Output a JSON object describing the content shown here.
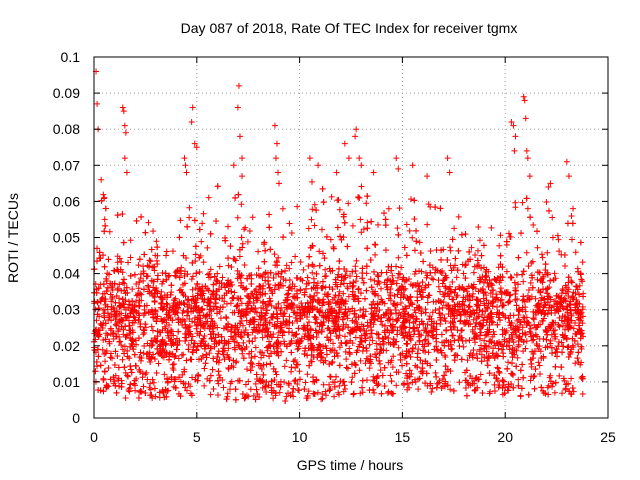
{
  "chart_data": {
    "type": "scatter",
    "title": "Day 087 of 2018, Rate Of TEC Index for receiver tgmx",
    "xlabel": "GPS time / hours",
    "ylabel": "ROTI / TECUs",
    "xlim": [
      0,
      25
    ],
    "ylim": [
      0,
      0.1
    ],
    "xticks": [
      "0",
      "5",
      "10",
      "15",
      "20",
      "25"
    ],
    "yticks": [
      "0",
      "0.01",
      "0.02",
      "0.03",
      "0.04",
      "0.05",
      "0.06",
      "0.07",
      "0.08",
      "0.09",
      "0.1"
    ],
    "grid": true,
    "marker": "plus",
    "color": "#ff0000",
    "data_extent": {
      "x_min": 0,
      "x_max": 23.8
    },
    "envelope": {
      "x": [
        0,
        0.5,
        1,
        1.5,
        2,
        2.5,
        3,
        3.5,
        4,
        4.5,
        5,
        5.5,
        6,
        6.5,
        7,
        7.5,
        8,
        8.5,
        9,
        9.5,
        10,
        10.5,
        11,
        11.5,
        12,
        12.5,
        13,
        13.5,
        14,
        14.5,
        15,
        15.5,
        16,
        16.5,
        17,
        17.5,
        18,
        18.5,
        19,
        19.5,
        20,
        20.5,
        21,
        21.5,
        22,
        22.5,
        23,
        23.5,
        23.8
      ],
      "upper": [
        0.065,
        0.062,
        0.055,
        0.06,
        0.055,
        0.057,
        0.05,
        0.052,
        0.053,
        0.062,
        0.058,
        0.062,
        0.065,
        0.058,
        0.063,
        0.058,
        0.055,
        0.057,
        0.065,
        0.055,
        0.06,
        0.065,
        0.068,
        0.063,
        0.062,
        0.066,
        0.065,
        0.06,
        0.06,
        0.062,
        0.068,
        0.062,
        0.062,
        0.058,
        0.063,
        0.058,
        0.055,
        0.055,
        0.055,
        0.056,
        0.058,
        0.06,
        0.062,
        0.063,
        0.06,
        0.055,
        0.057,
        0.055,
        0.048
      ],
      "lower": [
        0.007,
        0.006,
        0.006,
        0.005,
        0.005,
        0.006,
        0.005,
        0.005,
        0.006,
        0.006,
        0.006,
        0.006,
        0.006,
        0.005,
        0.005,
        0.005,
        0.005,
        0.005,
        0.004,
        0.005,
        0.006,
        0.005,
        0.005,
        0.006,
        0.005,
        0.006,
        0.006,
        0.006,
        0.006,
        0.006,
        0.008,
        0.007,
        0.007,
        0.006,
        0.008,
        0.007,
        0.006,
        0.006,
        0.007,
        0.006,
        0.006,
        0.006,
        0.006,
        0.007,
        0.006,
        0.006,
        0.006,
        0.005,
        0.006
      ]
    },
    "outliers": [
      [
        0.1,
        0.096
      ],
      [
        0.15,
        0.087
      ],
      [
        0.2,
        0.08
      ],
      [
        0.35,
        0.066
      ],
      [
        0.5,
        0.061
      ],
      [
        1.4,
        0.086
      ],
      [
        1.45,
        0.085
      ],
      [
        1.5,
        0.081
      ],
      [
        1.55,
        0.079
      ],
      [
        1.5,
        0.072
      ],
      [
        1.6,
        0.068
      ],
      [
        4.4,
        0.072
      ],
      [
        4.45,
        0.07
      ],
      [
        4.5,
        0.068
      ],
      [
        4.75,
        0.082
      ],
      [
        4.8,
        0.086
      ],
      [
        4.9,
        0.076
      ],
      [
        5.0,
        0.075
      ],
      [
        6.8,
        0.07
      ],
      [
        7.05,
        0.092
      ],
      [
        7.0,
        0.086
      ],
      [
        7.1,
        0.078
      ],
      [
        7.2,
        0.072
      ],
      [
        7.2,
        0.067
      ],
      [
        8.8,
        0.081
      ],
      [
        8.9,
        0.076
      ],
      [
        8.85,
        0.072
      ],
      [
        8.95,
        0.068
      ],
      [
        9.0,
        0.065
      ],
      [
        10.5,
        0.072
      ],
      [
        10.9,
        0.07
      ],
      [
        11.8,
        0.068
      ],
      [
        12.2,
        0.076
      ],
      [
        12.4,
        0.072
      ],
      [
        12.7,
        0.078
      ],
      [
        12.75,
        0.08
      ],
      [
        12.9,
        0.072
      ],
      [
        13.0,
        0.07
      ],
      [
        13.6,
        0.068
      ],
      [
        14.7,
        0.072
      ],
      [
        14.8,
        0.069
      ],
      [
        15.5,
        0.07
      ],
      [
        16.2,
        0.067
      ],
      [
        17.2,
        0.072
      ],
      [
        17.3,
        0.068
      ],
      [
        20.3,
        0.082
      ],
      [
        20.4,
        0.081
      ],
      [
        20.5,
        0.078
      ],
      [
        20.45,
        0.074
      ],
      [
        20.9,
        0.089
      ],
      [
        20.95,
        0.088
      ],
      [
        21.0,
        0.083
      ],
      [
        21.05,
        0.074
      ],
      [
        21.1,
        0.072
      ],
      [
        21.2,
        0.067
      ],
      [
        22.1,
        0.064
      ],
      [
        22.2,
        0.065
      ],
      [
        23.0,
        0.071
      ],
      [
        23.1,
        0.067
      ],
      [
        23.3,
        0.058
      ]
    ]
  }
}
